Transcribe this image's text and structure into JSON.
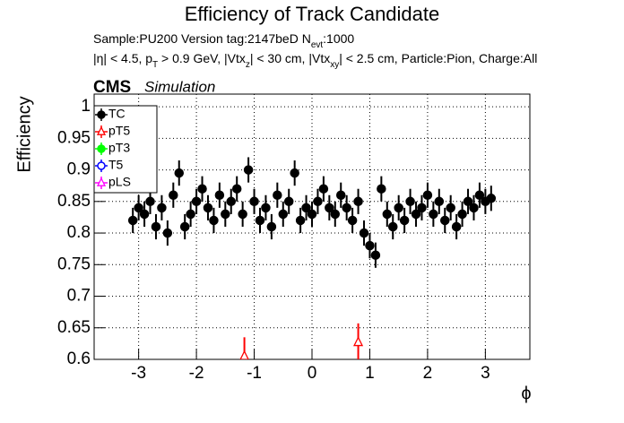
{
  "chart_data": {
    "type": "scatter",
    "title": "Efficiency of Track Candidate",
    "subtitle_lines": [
      [
        {
          "text": "Sample:PU200   Version tag:2147beD  N"
        },
        {
          "text": "evt",
          "sub": true
        },
        {
          "text": ":1000"
        }
      ],
      [
        {
          "text": "|η| < 4.5, p"
        },
        {
          "text": "T",
          "sub": true
        },
        {
          "text": " > 0.9 GeV, |Vtx"
        },
        {
          "text": "z",
          "sub": true
        },
        {
          "text": "| < 30 cm, |Vtx"
        },
        {
          "text": "xy",
          "sub": true
        },
        {
          "text": "| < 2.5 cm, Particle:Pion, Charge:All"
        }
      ]
    ],
    "experiment": "CMS",
    "status": "Simulation",
    "xlabel": "ϕ",
    "ylabel": "Efficiency",
    "xlim": [
      -3.77,
      3.77
    ],
    "ylim": [
      0.6,
      1.02
    ],
    "xticks": [
      -3,
      -2,
      -1,
      0,
      1,
      2,
      3
    ],
    "yticks": [
      0.6,
      0.65,
      0.7,
      0.75,
      0.8,
      0.85,
      0.9,
      0.95,
      1
    ],
    "grid": true,
    "legend": "upper left",
    "series": [
      {
        "name": "TC",
        "color": "#000000",
        "marker": "circle-filled",
        "error": 0.02,
        "x": [
          -3.1,
          -3.0,
          -2.9,
          -2.8,
          -2.7,
          -2.6,
          -2.5,
          -2.4,
          -2.3,
          -2.2,
          -2.1,
          -2.0,
          -1.9,
          -1.8,
          -1.7,
          -1.6,
          -1.5,
          -1.4,
          -1.3,
          -1.2,
          -1.1,
          -1.0,
          -0.9,
          -0.8,
          -0.7,
          -0.6,
          -0.5,
          -0.4,
          -0.3,
          -0.2,
          -0.1,
          0,
          0.1,
          0.2,
          0.3,
          0.4,
          0.5,
          0.6,
          0.7,
          0.8,
          0.9,
          1.0,
          1.1,
          1.2,
          1.3,
          1.4,
          1.5,
          1.6,
          1.7,
          1.8,
          1.9,
          2.0,
          2.1,
          2.2,
          2.3,
          2.4,
          2.5,
          2.6,
          2.7,
          2.8,
          2.9,
          3.0,
          3.1
        ],
        "values": [
          0.82,
          0.84,
          0.83,
          0.85,
          0.81,
          0.84,
          0.8,
          0.86,
          0.895,
          0.81,
          0.83,
          0.85,
          0.87,
          0.84,
          0.82,
          0.86,
          0.83,
          0.85,
          0.87,
          0.83,
          0.9,
          0.85,
          0.82,
          0.84,
          0.81,
          0.86,
          0.83,
          0.85,
          0.895,
          0.82,
          0.84,
          0.83,
          0.85,
          0.87,
          0.84,
          0.83,
          0.86,
          0.84,
          0.82,
          0.85,
          0.8,
          0.78,
          0.765,
          0.87,
          0.83,
          0.81,
          0.84,
          0.82,
          0.85,
          0.83,
          0.84,
          0.86,
          0.83,
          0.85,
          0.82,
          0.84,
          0.81,
          0.83,
          0.85,
          0.84,
          0.86,
          0.85,
          0.855
        ]
      },
      {
        "name": "pT5",
        "color": "#ff0000",
        "marker": "triangle-open",
        "error": 0.03,
        "x": [
          -1.17,
          0.8
        ],
        "values": [
          0.605,
          0.627
        ]
      },
      {
        "name": "pT3",
        "color": "#00ff00",
        "marker": "circle-filled",
        "error": 0.02,
        "x": [],
        "values": []
      },
      {
        "name": "T5",
        "color": "#0000ff",
        "marker": "circle-open",
        "error": 0.02,
        "x": [],
        "values": []
      },
      {
        "name": "pLS",
        "color": "#ff00ff",
        "marker": "triangle-open",
        "error": 0.02,
        "x": [],
        "values": []
      }
    ]
  }
}
